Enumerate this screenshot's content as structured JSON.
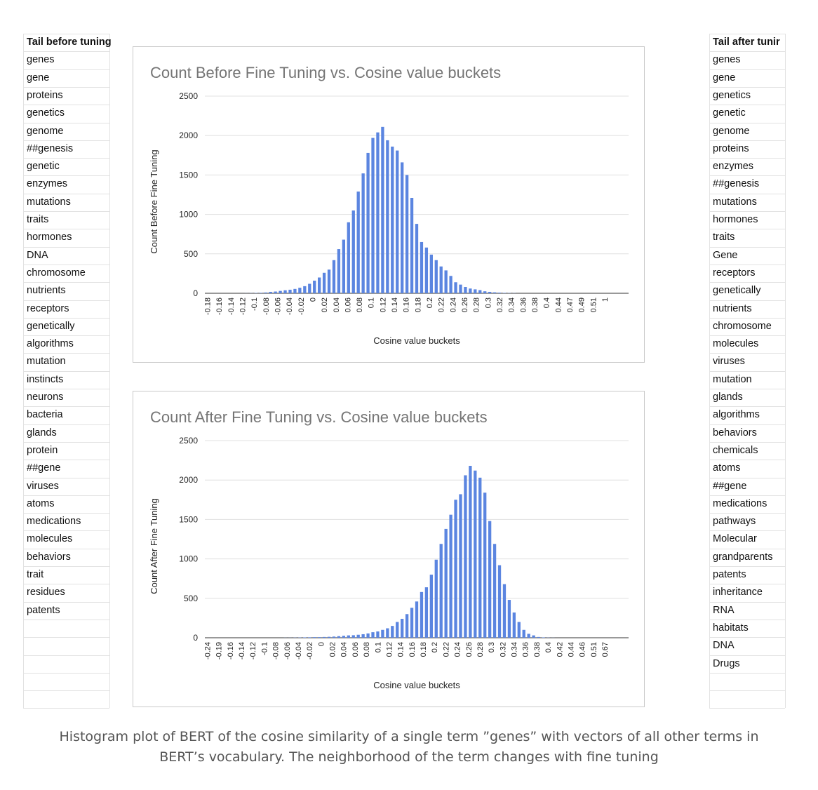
{
  "sheet": {
    "left_header": "Tail before tuning",
    "right_header": "Tail after tunir",
    "left_terms": [
      "genes",
      "gene",
      "proteins",
      "genetics",
      "genome",
      "##genesis",
      "genetic",
      "enzymes",
      "mutations",
      "traits",
      "hormones",
      "DNA",
      "chromosome",
      "nutrients",
      "receptors",
      "genetically",
      "algorithms",
      "mutation",
      "instincts",
      "neurons",
      "bacteria",
      "glands",
      "protein",
      "##gene",
      "viruses",
      "atoms",
      "medications",
      "molecules",
      "behaviors",
      "trait",
      "residues",
      "patents"
    ],
    "right_terms": [
      "genes",
      "gene",
      "genetics",
      "genetic",
      "genome",
      "proteins",
      "enzymes",
      "##genesis",
      "mutations",
      "hormones",
      "traits",
      "Gene",
      "receptors",
      "genetically",
      "nutrients",
      "chromosome",
      "molecules",
      "viruses",
      "mutation",
      "glands",
      "algorithms",
      "behaviors",
      "chemicals",
      "atoms",
      "##gene",
      "medications",
      "pathways",
      "Molecular",
      "grandparents",
      "patents",
      "inheritance",
      "RNA",
      "habitats",
      "DNA",
      "Drugs"
    ]
  },
  "colors": {
    "bar": "#5b85e0",
    "grid": "#e0e0e0",
    "title": "#757575"
  },
  "chart_data": [
    {
      "type": "bar",
      "title": "Count Before Fine Tuning vs. Cosine value buckets",
      "xlabel": "Cosine value buckets",
      "ylabel": "Count Before Fine Tuning",
      "ylim": [
        0,
        2500
      ],
      "yticks": [
        0,
        500,
        1000,
        1500,
        2000,
        2500
      ],
      "grid": true,
      "legend": "none",
      "tick_labels": [
        "-0.18",
        "-0.16",
        "-0.14",
        "-0.12",
        "-0.1",
        "-0.08",
        "-0.06",
        "-0.04",
        "-0.02",
        "0",
        "0.02",
        "0.04",
        "0.06",
        "0.08",
        "0.1",
        "0.12",
        "0.14",
        "0.16",
        "0.18",
        "0.2",
        "0.22",
        "0.24",
        "0.26",
        "0.28",
        "0.3",
        "0.32",
        "0.34",
        "0.36",
        "0.38",
        "0.4",
        "0.44",
        "0.47",
        "0.49",
        "0.51",
        "1"
      ],
      "values": [
        0,
        0,
        0,
        0,
        0,
        0,
        0,
        0,
        1,
        2,
        4,
        6,
        10,
        18,
        22,
        30,
        38,
        45,
        55,
        70,
        90,
        120,
        160,
        200,
        260,
        300,
        420,
        560,
        680,
        900,
        1050,
        1290,
        1520,
        1780,
        1970,
        2040,
        2110,
        1940,
        1860,
        1810,
        1660,
        1500,
        1210,
        880,
        650,
        580,
        490,
        420,
        340,
        290,
        220,
        140,
        110,
        80,
        60,
        50,
        40,
        25,
        18,
        12,
        8,
        5,
        3,
        2,
        0,
        0,
        0,
        0,
        0,
        0,
        0,
        0,
        0,
        0,
        0,
        0,
        0,
        0,
        0,
        0,
        0,
        0,
        0,
        0,
        0,
        0,
        0
      ]
    },
    {
      "type": "bar",
      "title": "Count After Fine Tuning vs. Cosine value buckets",
      "xlabel": "Cosine value buckets",
      "ylabel": "Count After Fine Tuning",
      "ylim": [
        0,
        2500
      ],
      "yticks": [
        0,
        500,
        1000,
        1500,
        2000,
        2500
      ],
      "grid": true,
      "legend": "none",
      "tick_labels": [
        "-0.24",
        "-0.19",
        "-0.16",
        "-0.14",
        "-0.12",
        "-0.1",
        "-0.08",
        "-0.06",
        "-0.04",
        "-0.02",
        "0",
        "0.02",
        "0.04",
        "0.06",
        "0.08",
        "0.1",
        "0.12",
        "0.14",
        "0.16",
        "0.18",
        "0.2",
        "0.22",
        "0.24",
        "0.26",
        "0.28",
        "0.3",
        "0.32",
        "0.34",
        "0.36",
        "0.38",
        "0.4",
        "0.42",
        "0.44",
        "0.46",
        "0.51",
        "0.67"
      ],
      "values": [
        0,
        0,
        0,
        0,
        0,
        0,
        0,
        0,
        0,
        0,
        0,
        0,
        0,
        0,
        0,
        0,
        1,
        1,
        2,
        3,
        5,
        6,
        8,
        8,
        10,
        12,
        15,
        20,
        25,
        30,
        32,
        38,
        45,
        55,
        70,
        80,
        100,
        120,
        150,
        200,
        240,
        300,
        380,
        460,
        580,
        640,
        800,
        990,
        1190,
        1380,
        1560,
        1750,
        1820,
        2060,
        2180,
        2120,
        2030,
        1840,
        1480,
        1190,
        920,
        680,
        480,
        320,
        200,
        100,
        50,
        30,
        10,
        5,
        2,
        1,
        0,
        0,
        0,
        0,
        0,
        0,
        0,
        0,
        0,
        0,
        0,
        0,
        0,
        0,
        0
      ]
    }
  ],
  "caption": {
    "line1": "Histogram plot of BERT of the cosine similarity of a single term ”genes” with vectors of all other terms in",
    "line2": "BERT’s vocabulary. The neighborhood of the term changes with fine tuning"
  }
}
